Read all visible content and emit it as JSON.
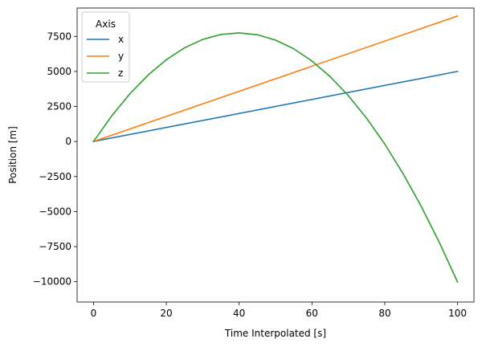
{
  "chart_data": {
    "type": "line",
    "xlabel": "Time Interpolated [s]",
    "ylabel": "Position [m]",
    "xlim": [
      -4.5,
      104.5
    ],
    "ylim": [
      -11450,
      9520
    ],
    "xticks": [
      0,
      20,
      40,
      60,
      80,
      100
    ],
    "yticks": [
      -10000,
      -7500,
      -5000,
      -2500,
      0,
      2500,
      5000,
      7500
    ],
    "ytick_labels": [
      "−10000",
      "−7500",
      "−5000",
      "−2500",
      "0",
      "2500",
      "5000",
      "7500"
    ],
    "grid": false,
    "legend": {
      "title": "Axis",
      "placement": "top-left"
    },
    "series": [
      {
        "name": "x",
        "color": "#1f77b4",
        "x": [
          0,
          100
        ],
        "y": [
          0,
          5000
        ]
      },
      {
        "name": "y",
        "color": "#ff7f0e",
        "x": [
          0,
          100
        ],
        "y": [
          0,
          8950
        ]
      },
      {
        "name": "z",
        "color": "#2ca02c",
        "x": [
          0,
          5,
          10,
          15,
          20,
          25,
          30,
          35,
          40,
          45,
          50,
          55,
          60,
          65,
          70,
          75,
          80,
          85,
          90,
          95,
          100
        ],
        "y": [
          0,
          1826,
          3407,
          4743,
          5834,
          6680,
          7281,
          7637,
          7748,
          7614,
          7235,
          6611,
          5742,
          4628,
          3269,
          1665,
          -184,
          -2279,
          -4619,
          -7204,
          -10034
        ]
      }
    ]
  }
}
